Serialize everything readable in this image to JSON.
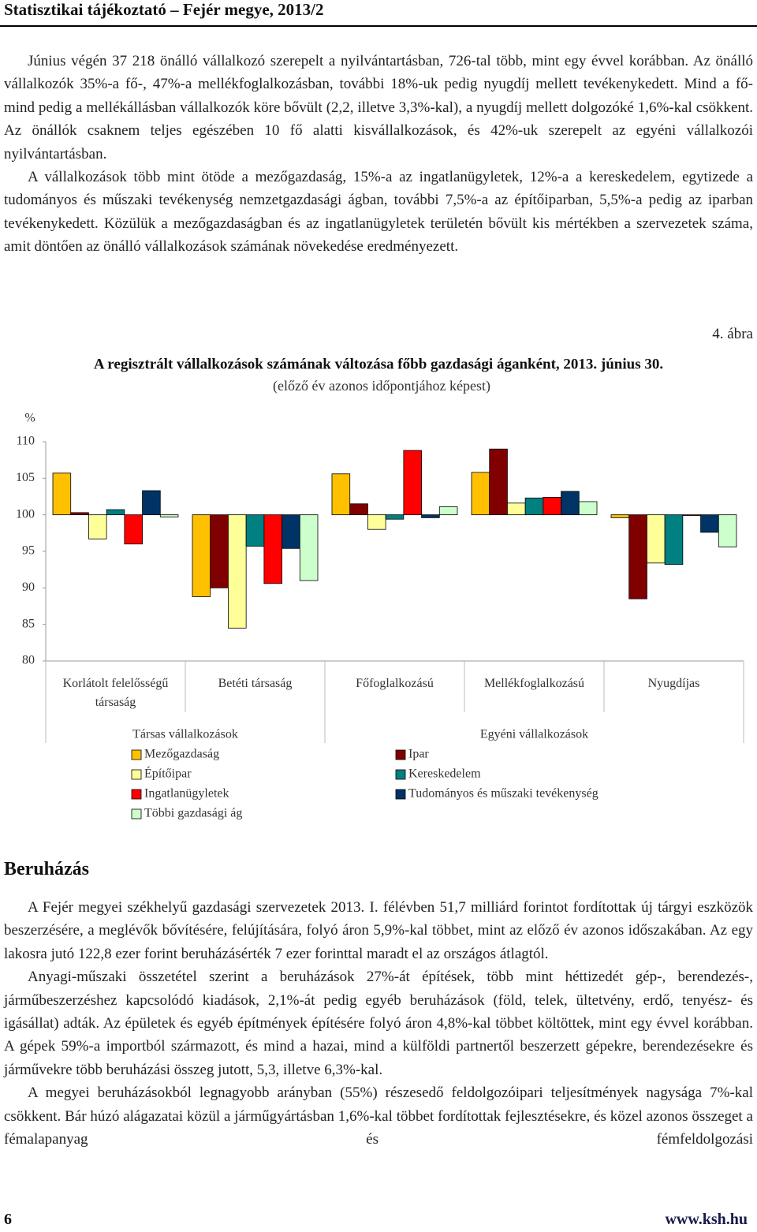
{
  "header": {
    "title": "Statisztikai tájékoztató – Fejér megye, 2013/2"
  },
  "paragraphs": [
    "Június végén 37 218 önálló vállalkozó szerepelt a nyilvántartásban, 726-tal több, mint egy évvel korábban. Az önálló vállalkozók 35%-a fő-, 47%-a mellékfoglalkozásban, további 18%-uk pedig nyugdíj mellett tevékenykedett. Mind a fő- mind pedig a mellékállásban vállalkozók köre bővült (2,2, illetve 3,3%-kal), a nyugdíj mellett dolgozóké 1,6%-kal csökkent. Az önállók csaknem teljes egészében 10 fő alatti kisvállalkozások, és 42%-uk szerepelt az egyéni vállalkozói nyilvántartásban.",
    "A vállalkozások több mint ötöde a mezőgazdaság, 15%-a az ingatlanügyletek, 12%-a a kereskedelem, egytizede a tudományos és műszaki tevékenység nemzetgazdasági ágban, további 7,5%-a az építőiparban, 5,5%-a pedig az iparban tevékenykedett. Közülük a mezőgazdaságban és az ingatlanügyletek területén bővült kis mértékben a szervezetek száma, amit döntően az önálló vállalkozások számának növekedése eredményezett."
  ],
  "figure_label": "4. ábra",
  "chart_data": {
    "type": "bar",
    "title": "A regisztrált vállalkozások számának változása főbb gazdasági áganként, 2013. június 30.",
    "subtitle": "(előző év azonos időpontjához képest)",
    "ylabel": "%",
    "categories": [
      "Korlátolt felelősségű társaság",
      "Betéti társaság",
      "Főfoglalkozású",
      "Mellékfoglalkozású",
      "Nyugdíjas"
    ],
    "category_groups": [
      "Társas vállalkozások",
      "Egyéni vállalkozások"
    ],
    "bar_base": 100,
    "ylim": [
      80,
      110
    ],
    "yticks": [
      80,
      85,
      90,
      95,
      100,
      105,
      110
    ],
    "series": [
      {
        "name": "Mezőgazdaság",
        "color": "#FFC000",
        "values": [
          105.7,
          88.8,
          105.6,
          105.8,
          99.6
        ]
      },
      {
        "name": "Ipar",
        "color": "#800000",
        "values": [
          100.3,
          90,
          101.5,
          109,
          88.5
        ]
      },
      {
        "name": "Építőipar",
        "color": "#FFFF99",
        "values": [
          96.7,
          84.5,
          98,
          101.6,
          93.4
        ]
      },
      {
        "name": "Kereskedelem",
        "color": "#008080",
        "values": [
          100.7,
          95.7,
          99.4,
          102.3,
          93.2
        ]
      },
      {
        "name": "Ingatlanügyletek",
        "color": "#FF0000",
        "values": [
          96,
          90.6,
          108.8,
          102.4,
          99.9
        ]
      },
      {
        "name": "Tudományos és műszaki tevékenység",
        "color": "#003366",
        "values": [
          103.3,
          95.4,
          99.6,
          103.2,
          97.6
        ]
      },
      {
        "name": "Többi gazdasági ág",
        "color": "#CCFFCC",
        "values": [
          99.7,
          91,
          101.1,
          101.8,
          95.6
        ]
      }
    ]
  },
  "section": {
    "title": "Beruházás",
    "paragraphs": [
      "A Fejér megyei székhelyű gazdasági szervezetek 2013. I. félévben 51,7 milliárd forintot fordítottak új tárgyi eszközök beszerzésére, a meglévők bővítésére, felújítására, folyó áron 5,9%-kal többet, mint az előző év azonos időszakában. Az egy lakosra jutó 122,8 ezer forint beruházásérték 7 ezer forinttal maradt el az országos átlagtól.",
      "Anyagi-műszaki összetétel szerint a beruházások 27%-át építések, több mint héttizedét gép-, berendezés-, járműbeszerzéshez kapcsolódó kiadások, 2,1%-át pedig egyéb beruházások (föld, telek, ültetvény, erdő, tenyész- és igásállat) adták. Az épületek és egyéb építmények építésére folyó áron 4,8%-kal többet költöttek, mint egy évvel korábban. A gépek 59%-a importból származott, és mind a hazai, mind a külföldi partnertől beszerzett gépekre, berendezésekre és járművekre több beruházási összeg jutott, 5,3, illetve 6,3%-kal.",
      "A megyei beruházásokból legnagyobb arányban (55%) részesedő feldolgozóipari teljesítmények nagysága 7%-kal csökkent. Bár húzó alágazatai közül a járműgyártásban 1,6%-kal többet fordítottak fejlesztésekre, és közel azonos összeget a fémalapanyag és fémfeldolgozási"
    ]
  },
  "footer": {
    "page": "6",
    "url": "www.ksh.hu"
  }
}
